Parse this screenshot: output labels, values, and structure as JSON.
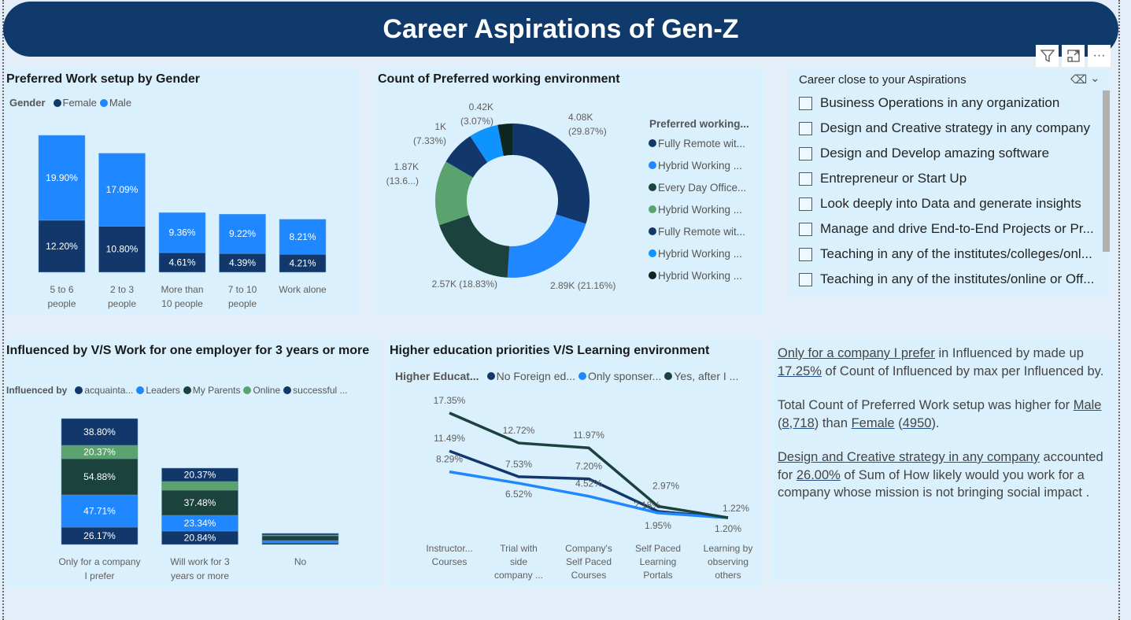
{
  "title": "Career Aspirations of Gen-Z",
  "colors": {
    "navy": "#12386b",
    "blue": "#1f87ff",
    "darkgreen": "#1b423c",
    "green": "#5aa36f",
    "black": "#0d2623",
    "lightblue": "#0f94ff"
  },
  "visual_header_icons": [
    "filter-icon",
    "focus-mode-icon",
    "more-options-icon"
  ],
  "slicer": {
    "title": "Career close to your Aspirations",
    "items": [
      "Business Operations in any organization",
      "Design and Creative strategy in any company",
      "Design and Develop amazing software",
      "Entrepreneur or Start Up",
      "Look deeply into Data and generate insights",
      "Manage and drive End-to-End Projects or Pr...",
      "Teaching in any of the institutes/colleges/onl...",
      "Teaching in any of the institutes/online or Off..."
    ]
  },
  "narrative": {
    "p1": {
      "a": "Only for a company I prefer",
      "b": " in Influenced by  made up ",
      "c": "17.25%",
      "d": " of Count of Influenced by max per Influenced by."
    },
    "p2": {
      "a": "Total Count of Preferred Work setup was higher for ",
      "b": "Male",
      "c": "8,718",
      "d": " than ",
      "e": "Female",
      "f": "4950"
    },
    "p3": {
      "a": "Design and Creative strategy in any company",
      "b": " accounted for ",
      "c": "26.00%",
      "d": " of Sum of How likely would you work for a company whose mission is not bringing social impact ."
    }
  },
  "chart_data": [
    {
      "type": "bar",
      "stacked": true,
      "title": "Preferred Work setup by Gender",
      "legend_title": "Gender",
      "legend": "top-left",
      "categories": [
        [
          "5 to 6",
          "people"
        ],
        [
          "2 to 3",
          "people"
        ],
        [
          "More than",
          "10 people"
        ],
        [
          "7 to 10",
          "people"
        ],
        [
          "Work alone",
          ""
        ]
      ],
      "series": [
        {
          "name": "Female",
          "color": "#12386b",
          "values": [
            12.2,
            10.8,
            4.61,
            4.39,
            4.21
          ],
          "labels": [
            "12.20%",
            "10.80%",
            "4.61%",
            "4.39%",
            "4.21%"
          ]
        },
        {
          "name": "Male",
          "color": "#1f87ff",
          "values": [
            19.9,
            17.09,
            9.36,
            9.22,
            8.21
          ],
          "labels": [
            "19.90%",
            "17.09%",
            "9.36%",
            "9.22%",
            "8.21%"
          ]
        }
      ]
    },
    {
      "type": "pie",
      "donut": true,
      "title": "Count of Preferred working environment",
      "legend_title": "Preferred working...",
      "legend": "right",
      "slices": [
        {
          "name": "Fully Remote wit...",
          "color": "#12386b",
          "percent": 29.87,
          "label1": "4.08K",
          "label2": "(29.87%)"
        },
        {
          "name": "Hybrid Working ...",
          "color": "#1f87ff",
          "percent": 21.16,
          "label1": "2.89K (21.16%)",
          "label2": ""
        },
        {
          "name": "Every Day Office...",
          "color": "#1b423c",
          "percent": 18.83,
          "label1": "2.57K (18.83%)",
          "label2": ""
        },
        {
          "name": "Hybrid Working ...",
          "color": "#5aa36f",
          "percent": 13.6,
          "label1": "1.87K",
          "label2": "(13.6...)"
        },
        {
          "name": "Fully Remote wit...",
          "color": "#12386b",
          "percent": 7.33,
          "label1": "1K",
          "label2": "(7.33%)"
        },
        {
          "name": "Hybrid Working ...",
          "color": "#0f94ff",
          "percent": 6.14,
          "label1": "",
          "label2": ""
        },
        {
          "name": "Hybrid Working ...",
          "color": "#0d2623",
          "percent": 3.07,
          "label1": "0.42K",
          "label2": "(3.07%)"
        }
      ]
    },
    {
      "type": "bar",
      "stacked": true,
      "title": "Influenced by V/S Work for one employer for 3 years or more",
      "legend_title": "Influenced by",
      "legend": "top-left",
      "categories": [
        [
          "Only for a company",
          "I prefer"
        ],
        [
          "Will work for 3",
          "years or more"
        ],
        [
          "No",
          ""
        ]
      ],
      "series": [
        {
          "name": "acquainta...",
          "color": "#12386b",
          "values": [
            220,
            170,
            20
          ],
          "labels": [
            "26.17%",
            "20.84%",
            ""
          ]
        },
        {
          "name": "Leaders",
          "color": "#1f87ff",
          "values": [
            410,
            200,
            30
          ],
          "labels": [
            "47.71%",
            "23.34%",
            ""
          ]
        },
        {
          "name": "My Parents",
          "color": "#1b423c",
          "values": [
            460,
            320,
            60
          ],
          "labels": [
            "54.88%",
            "37.48%",
            ""
          ]
        },
        {
          "name": "Online",
          "color": "#5aa36f",
          "values": [
            170,
            110,
            10
          ],
          "labels": [
            "20.37%",
            "",
            ""
          ]
        },
        {
          "name": "successful ...",
          "color": "#12386b",
          "values": [
            340,
            170,
            20
          ],
          "labels": [
            "38.80%",
            "20.37%",
            ""
          ]
        }
      ]
    },
    {
      "type": "line",
      "title": "Higher education priorities V/S Learning environment",
      "legend_title": "Higher Educat...",
      "legend": "top-left",
      "categories": [
        [
          "Instructor...",
          "Courses",
          ""
        ],
        [
          "Trial with",
          "side",
          "company ..."
        ],
        [
          "Company's",
          "Self Paced",
          "Courses"
        ],
        [
          "Self Paced",
          "Learning",
          "Portals"
        ],
        [
          "Learning by",
          "observing",
          "others"
        ]
      ],
      "series": [
        {
          "name": "No Foreign ed...",
          "color": "#12386b",
          "values": [
            11.49,
            7.53,
            7.2,
            2.18,
            1.21
          ],
          "labels": [
            "11.49%",
            "7.53%",
            "7.20%",
            "2.18%",
            ""
          ]
        },
        {
          "name": "Only sponser...",
          "color": "#1f87ff",
          "values": [
            8.29,
            6.52,
            4.52,
            1.95,
            1.2
          ],
          "labels": [
            "8.29%",
            "6.52%",
            "4.52%",
            "1.95%",
            "1.20%"
          ]
        },
        {
          "name": "Yes, after I ...",
          "color": "#1b423c",
          "values": [
            17.35,
            12.72,
            11.97,
            2.97,
            1.22
          ],
          "labels": [
            "17.35%",
            "12.72%",
            "11.97%",
            "2.97%",
            "1.22%"
          ]
        }
      ]
    }
  ]
}
